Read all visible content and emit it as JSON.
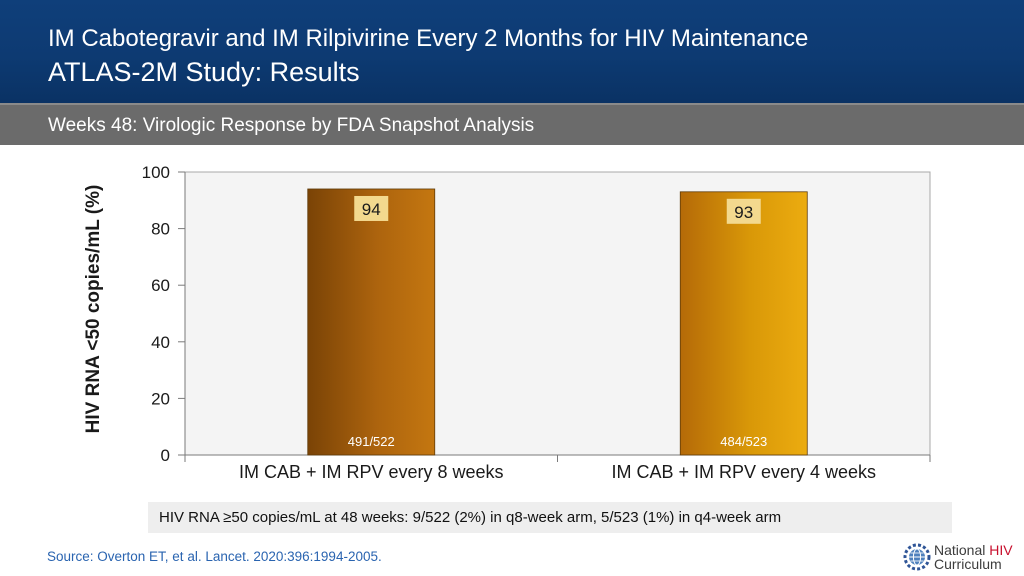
{
  "header": {
    "title_line1": "IM Cabotegravir and IM Rilpivirine Every 2 Months for HIV Maintenance",
    "title_line2": "ATLAS-2M Study: Results"
  },
  "subheader": {
    "subtitle": "Weeks 48: Virologic Response by FDA Snapshot Analysis"
  },
  "chart_data": {
    "type": "bar",
    "title": "",
    "xlabel": "",
    "ylabel": "HIV RNA <50 copies/mL (%)",
    "ylim": [
      0,
      100
    ],
    "yticks": [
      0,
      20,
      40,
      60,
      80,
      100
    ],
    "grid": false,
    "legend": "none",
    "categories": [
      "IM CAB + IM RPV every 8 weeks",
      "IM CAB + IM RPV every 4 weeks"
    ],
    "values": [
      94,
      93
    ],
    "value_labels": [
      "94",
      "93"
    ],
    "n_labels": [
      "491/522",
      "484/523"
    ],
    "bar_colors": [
      [
        "#7a4306",
        "#ad640e",
        "#c47710"
      ],
      [
        "#b56a08",
        "#d99808",
        "#ecac10"
      ]
    ]
  },
  "note": {
    "text": "HIV RNA ≥50 copies/mL at 48 weeks: 9/522 (2%) in q8-week arm, 5/523 (1%) in q4-week arm"
  },
  "footer": {
    "source": "Source: Overton ET, et al. Lancet. 2020:396:1994-2005.",
    "logo_word1": "National ",
    "logo_word2": "HIV",
    "logo_word3": "Curriculum",
    "logo_icon": "gear-globe-icon",
    "logo_accent_color": "#c8102e"
  }
}
